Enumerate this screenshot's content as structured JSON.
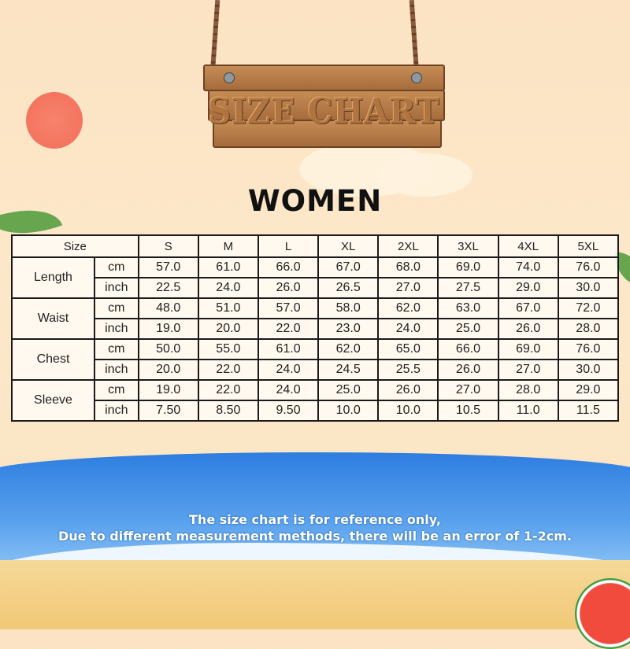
{
  "sign": {
    "title": "SIZE CHART"
  },
  "heading": "WOMEN",
  "table": {
    "size_label": "Size",
    "sizes": [
      "S",
      "M",
      "L",
      "XL",
      "2XL",
      "3XL",
      "4XL",
      "5XL"
    ],
    "measurements": [
      {
        "name": "Length",
        "rows": [
          {
            "unit": "cm",
            "values": [
              "57.0",
              "61.0",
              "66.0",
              "67.0",
              "68.0",
              "69.0",
              "74.0",
              "76.0"
            ]
          },
          {
            "unit": "inch",
            "values": [
              "22.5",
              "24.0",
              "26.0",
              "26.5",
              "27.0",
              "27.5",
              "29.0",
              "30.0"
            ]
          }
        ]
      },
      {
        "name": "Waist",
        "rows": [
          {
            "unit": "cm",
            "values": [
              "48.0",
              "51.0",
              "57.0",
              "58.0",
              "62.0",
              "63.0",
              "67.0",
              "72.0"
            ]
          },
          {
            "unit": "inch",
            "values": [
              "19.0",
              "20.0",
              "22.0",
              "23.0",
              "24.0",
              "25.0",
              "26.0",
              "28.0"
            ]
          }
        ]
      },
      {
        "name": "Chest",
        "rows": [
          {
            "unit": "cm",
            "values": [
              "50.0",
              "55.0",
              "61.0",
              "62.0",
              "65.0",
              "66.0",
              "69.0",
              "76.0"
            ]
          },
          {
            "unit": "inch",
            "values": [
              "20.0",
              "22.0",
              "24.0",
              "24.5",
              "25.5",
              "26.0",
              "27.0",
              "30.0"
            ]
          }
        ]
      },
      {
        "name": "Sleeve",
        "rows": [
          {
            "unit": "cm",
            "values": [
              "19.0",
              "22.0",
              "24.0",
              "25.0",
              "26.0",
              "27.0",
              "28.0",
              "29.0"
            ]
          },
          {
            "unit": "inch",
            "values": [
              "7.50",
              "8.50",
              "9.50",
              "10.0",
              "10.0",
              "10.5",
              "11.0",
              "11.5"
            ]
          }
        ]
      }
    ]
  },
  "note": {
    "line1": "The size chart is for reference only,",
    "line2": "Due to different measurement methods, there will be an error of 1-2cm."
  },
  "colors": {
    "sun": "#f47e6a",
    "sea": "#2e7de0",
    "sand": "#f4d28a",
    "wood": "#b57a45"
  }
}
